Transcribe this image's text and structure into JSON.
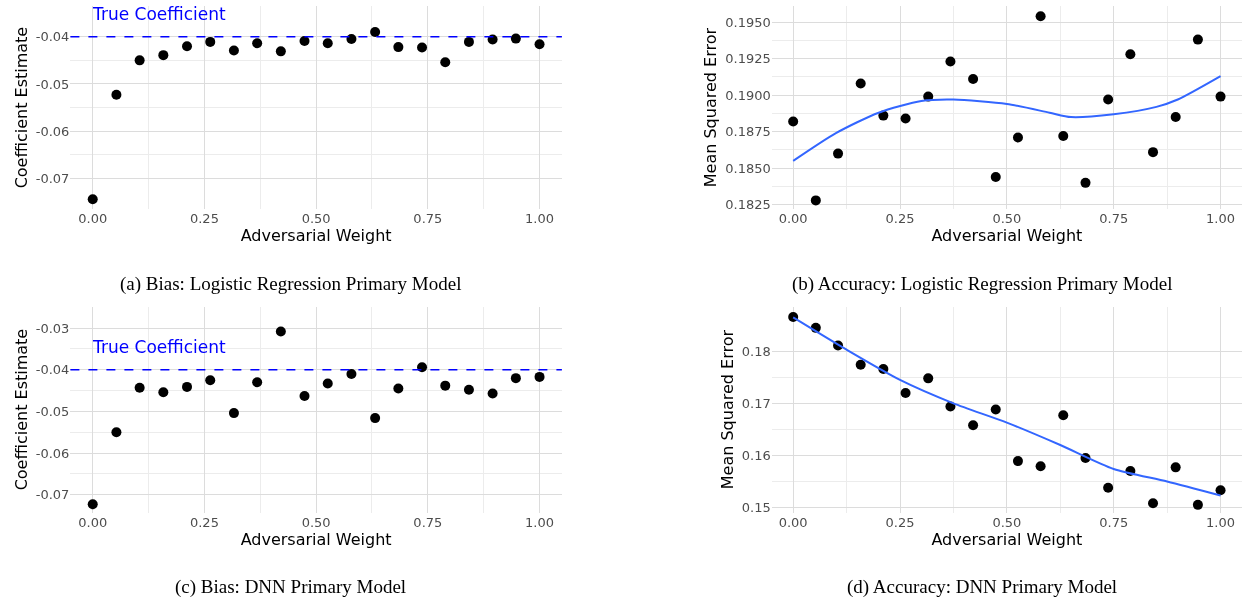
{
  "chart_data": [
    {
      "type": "scatter",
      "xlabel": "Adversarial Weight",
      "ylabel": "Coefficient Estimate",
      "annotations": [
        "(a) Bias: Logistic Regression Primary Model"
      ],
      "xlim": [
        -0.05,
        1.05
      ],
      "xticks": [
        {
          "value": 0,
          "label": "0.00"
        },
        {
          "value": 0.25,
          "label": "0.25"
        },
        {
          "value": 0.5,
          "label": "0.50"
        },
        {
          "value": 0.75,
          "label": "0.75"
        },
        {
          "value": 1,
          "label": "1.00"
        }
      ],
      "ylim": [
        -0.0765,
        -0.0335
      ],
      "yticks": [
        -0.07,
        -0.06,
        -0.05,
        -0.04
      ],
      "grid": true,
      "ref_lines": [
        {
          "axis": "y",
          "value": -0.04,
          "label": "True Coefficient",
          "color": "#0000ff",
          "line_style": "dashed"
        }
      ],
      "series": [
        {
          "marker": "circle",
          "color": "#000000",
          "x": [
            0,
            0.053,
            0.105,
            0.158,
            0.211,
            0.263,
            0.316,
            0.368,
            0.421,
            0.474,
            0.526,
            0.579,
            0.632,
            0.684,
            0.737,
            0.789,
            0.842,
            0.895,
            0.947,
            1.0
          ],
          "values": [
            -0.0744,
            -0.0523,
            -0.045,
            -0.0439,
            -0.042,
            -0.0411,
            -0.0429,
            -0.0414,
            -0.0431,
            -0.0409,
            -0.0414,
            -0.0405,
            -0.039,
            -0.0422,
            -0.0423,
            -0.0454,
            -0.0411,
            -0.0406,
            -0.0404,
            -0.0416
          ]
        }
      ]
    },
    {
      "type": "scatter",
      "xlabel": "Adversarial Weight",
      "ylabel": "Mean Squared Error",
      "annotations": [
        "(b) Accuracy: Logistic Regression Primary Model"
      ],
      "xlim": [
        -0.05,
        1.05
      ],
      "xticks": [
        {
          "value": 0,
          "label": "0.00"
        },
        {
          "value": 0.25,
          "label": "0.25"
        },
        {
          "value": 0.5,
          "label": "0.50"
        },
        {
          "value": 0.75,
          "label": "0.75"
        },
        {
          "value": 1,
          "label": "1.00"
        }
      ],
      "ylim": [
        0.1822,
        0.1961
      ],
      "yticks": [
        {
          "value": 0.1825,
          "label": "0.1825"
        },
        {
          "value": 0.185,
          "label": "0.1850"
        },
        {
          "value": 0.1875,
          "label": "0.1875"
        },
        {
          "value": 0.19,
          "label": "0.1900"
        },
        {
          "value": 0.1925,
          "label": "0.1925"
        },
        {
          "value": 0.195,
          "label": "0.1950"
        }
      ],
      "grid": true,
      "series": [
        {
          "marker": "circle",
          "color": "#000000",
          "x": [
            0,
            0.053,
            0.105,
            0.158,
            0.211,
            0.263,
            0.316,
            0.368,
            0.421,
            0.474,
            0.526,
            0.579,
            0.632,
            0.684,
            0.737,
            0.789,
            0.842,
            0.895,
            0.947,
            1.0
          ],
          "values": [
            0.1882,
            0.1828,
            0.186,
            0.1908,
            0.1886,
            0.1884,
            0.1899,
            0.1923,
            0.1911,
            0.1844,
            0.1871,
            0.1954,
            0.1872,
            0.184,
            0.1897,
            0.1928,
            0.1861,
            0.1885,
            0.1938,
            0.1899
          ]
        },
        {
          "type": "line",
          "color": "#3366ff",
          "x": [
            0,
            0.1,
            0.2,
            0.3,
            0.375,
            0.5,
            0.6,
            0.65,
            0.75,
            0.85,
            0.9,
            1.0
          ],
          "values": [
            0.1855,
            0.1874,
            0.1888,
            0.1896,
            0.1897,
            0.1894,
            0.1888,
            0.1885,
            0.1887,
            0.1892,
            0.1897,
            0.1913
          ]
        }
      ]
    },
    {
      "type": "scatter",
      "xlabel": "Adversarial Weight",
      "ylabel": "Coefficient Estimate",
      "annotations": [
        "(c) Bias: DNN Primary Model"
      ],
      "xlim": [
        -0.05,
        1.05
      ],
      "xticks": [
        {
          "value": 0,
          "label": "0.00"
        },
        {
          "value": 0.25,
          "label": "0.25"
        },
        {
          "value": 0.5,
          "label": "0.50"
        },
        {
          "value": 0.75,
          "label": "0.75"
        },
        {
          "value": 1,
          "label": "1.00"
        }
      ],
      "ylim": [
        -0.0743,
        -0.0248
      ],
      "yticks": [
        -0.07,
        -0.06,
        -0.05,
        -0.04,
        -0.03
      ],
      "grid": true,
      "ref_lines": [
        {
          "axis": "y",
          "value": -0.04,
          "label": "True Coefficient",
          "color": "#0000ff",
          "line_style": "dashed"
        }
      ],
      "series": [
        {
          "marker": "circle",
          "color": "#000000",
          "x": [
            0,
            0.053,
            0.105,
            0.158,
            0.211,
            0.263,
            0.316,
            0.368,
            0.421,
            0.474,
            0.526,
            0.579,
            0.632,
            0.684,
            0.737,
            0.789,
            0.842,
            0.895,
            0.947,
            1.0
          ],
          "values": [
            -0.0723,
            -0.055,
            -0.0443,
            -0.0454,
            -0.0441,
            -0.0425,
            -0.0504,
            -0.043,
            -0.0308,
            -0.0463,
            -0.0433,
            -0.041,
            -0.0516,
            -0.0445,
            -0.0394,
            -0.0438,
            -0.0448,
            -0.0457,
            -0.042,
            -0.0417
          ]
        }
      ]
    },
    {
      "type": "scatter",
      "xlabel": "Adversarial Weight",
      "ylabel": "Mean Squared Error",
      "annotations": [
        "(d) Accuracy: DNN Primary Model"
      ],
      "xlim": [
        -0.05,
        1.05
      ],
      "xticks": [
        {
          "value": 0,
          "label": "0.00"
        },
        {
          "value": 0.25,
          "label": "0.25"
        },
        {
          "value": 0.5,
          "label": "0.50"
        },
        {
          "value": 0.75,
          "label": "0.75"
        },
        {
          "value": 1,
          "label": "1.00"
        }
      ],
      "ylim": [
        0.149,
        0.1886
      ],
      "yticks": [
        {
          "value": 0.15,
          "label": "0.15"
        },
        {
          "value": 0.16,
          "label": "0.16"
        },
        {
          "value": 0.17,
          "label": "0.17"
        },
        {
          "value": 0.18,
          "label": "0.18"
        }
      ],
      "grid": true,
      "series": [
        {
          "marker": "circle",
          "color": "#000000",
          "x": [
            0,
            0.053,
            0.105,
            0.158,
            0.211,
            0.263,
            0.316,
            0.368,
            0.421,
            0.474,
            0.526,
            0.579,
            0.632,
            0.684,
            0.737,
            0.789,
            0.842,
            0.895,
            0.947,
            1.0
          ],
          "values": [
            0.1866,
            0.1845,
            0.1811,
            0.1774,
            0.1766,
            0.172,
            0.1748,
            0.1694,
            0.1658,
            0.1688,
            0.1589,
            0.1579,
            0.1677,
            0.1595,
            0.1538,
            0.157,
            0.1508,
            0.1577,
            0.1505,
            0.1533
          ]
        },
        {
          "type": "line",
          "color": "#3366ff",
          "x": [
            0,
            0.125,
            0.25,
            0.375,
            0.5,
            0.625,
            0.75,
            0.875,
            1.0
          ],
          "values": [
            0.1865,
            0.1803,
            0.1745,
            0.17,
            0.1663,
            0.162,
            0.1574,
            0.155,
            0.1523
          ]
        }
      ]
    }
  ]
}
